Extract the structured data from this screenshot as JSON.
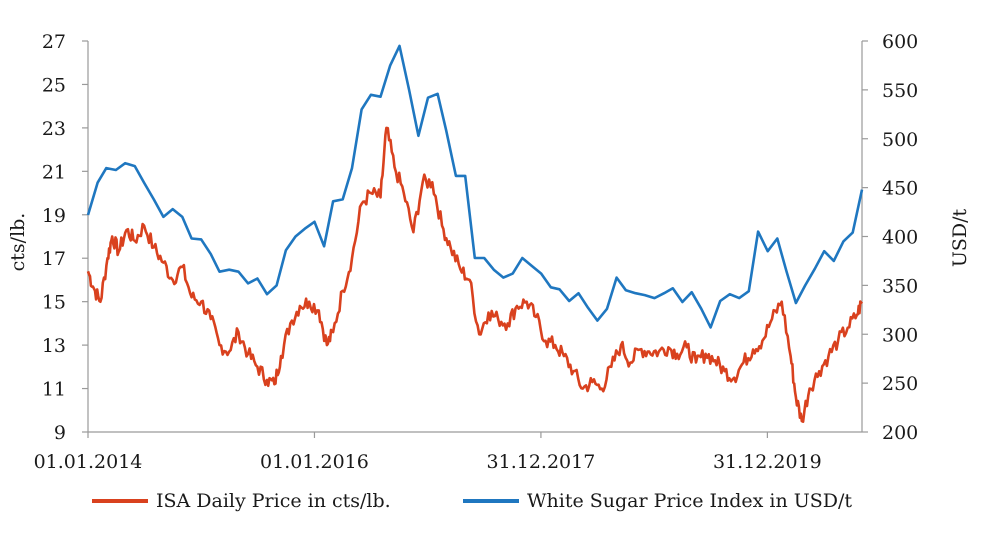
{
  "chart_data": {
    "type": "line",
    "title": "",
    "x_ticks": [
      "01.01.2014",
      "01.01.2016",
      "31.12.2017",
      "31.12.2019"
    ],
    "xlim": [
      "2014-01-01",
      "2020-10-31"
    ],
    "y_left": {
      "label": "cts/lb.",
      "ticks": [
        "27",
        "25",
        "23",
        "21",
        "19",
        "17",
        "15",
        "13",
        "11",
        "9"
      ],
      "ylim": [
        9,
        27
      ]
    },
    "y_right": {
      "label": "USD/t",
      "ticks": [
        "600",
        "550",
        "500",
        "450",
        "400",
        "350",
        "300",
        "250",
        "200"
      ],
      "ylim": [
        200,
        600
      ]
    },
    "series": [
      {
        "name": "ISA Daily Price in cts/lb.",
        "axis": "left",
        "color": "#d9411e",
        "x": [
          "2014-01-01",
          "2014-01-20",
          "2014-02-10",
          "2014-03-05",
          "2014-03-20",
          "2014-04-10",
          "2014-05-05",
          "2014-06-01",
          "2014-07-01",
          "2014-08-01",
          "2014-09-01",
          "2014-10-01",
          "2014-11-01",
          "2014-12-01",
          "2015-01-01",
          "2015-02-01",
          "2015-03-01",
          "2015-04-01",
          "2015-05-01",
          "2015-06-01",
          "2015-07-01",
          "2015-08-01",
          "2015-08-25",
          "2015-09-15",
          "2015-10-15",
          "2015-11-15",
          "2015-12-15",
          "2016-01-15",
          "2016-02-10",
          "2016-03-01",
          "2016-04-01",
          "2016-05-01",
          "2016-06-01",
          "2016-07-01",
          "2016-08-01",
          "2016-08-20",
          "2016-09-15",
          "2016-10-15",
          "2016-11-15",
          "2016-12-15",
          "2017-01-15",
          "2017-02-15",
          "2017-03-15",
          "2017-04-15",
          "2017-05-15",
          "2017-06-15",
          "2017-07-15",
          "2017-08-15",
          "2017-09-15",
          "2017-10-15",
          "2017-11-15",
          "2017-12-15",
          "2018-01-15",
          "2018-02-15",
          "2018-03-15",
          "2018-04-15",
          "2018-05-15",
          "2018-06-15",
          "2018-07-15",
          "2018-08-15",
          "2018-09-15",
          "2018-10-15",
          "2018-11-15",
          "2018-12-15",
          "2019-01-15",
          "2019-02-15",
          "2019-03-15",
          "2019-04-15",
          "2019-05-15",
          "2019-06-15",
          "2019-07-15",
          "2019-08-15",
          "2019-09-15",
          "2019-10-15",
          "2019-11-15",
          "2019-12-15",
          "2020-01-15",
          "2020-02-15",
          "2020-03-15",
          "2020-04-01",
          "2020-04-20",
          "2020-05-15",
          "2020-06-15",
          "2020-07-15",
          "2020-08-15",
          "2020-09-15",
          "2020-10-15",
          "2020-10-31"
        ],
        "values": [
          16.4,
          15.6,
          15.0,
          17.0,
          18.0,
          17.3,
          18.3,
          17.8,
          18.5,
          17.5,
          16.8,
          16.0,
          16.6,
          15.2,
          15.0,
          14.2,
          13.0,
          12.7,
          13.6,
          12.6,
          12.0,
          11.4,
          11.2,
          12.5,
          14.0,
          14.8,
          15.0,
          14.6,
          13.0,
          13.6,
          15.5,
          17.0,
          19.5,
          20.0,
          19.8,
          23.0,
          21.2,
          20.0,
          18.2,
          20.5,
          20.5,
          18.5,
          17.5,
          16.5,
          16.0,
          13.5,
          14.5,
          14.2,
          14.0,
          14.8,
          15.0,
          14.3,
          13.2,
          13.0,
          12.5,
          11.8,
          11.0,
          11.3,
          11.0,
          12.0,
          13.0,
          12.2,
          12.8,
          12.7,
          12.7,
          12.9,
          12.6,
          12.9,
          12.2,
          12.6,
          12.3,
          11.8,
          11.5,
          12.2,
          12.8,
          13.2,
          14.2,
          15.0,
          12.5,
          10.6,
          9.5,
          11.0,
          11.8,
          12.5,
          13.2,
          13.8,
          14.4,
          15.0
        ]
      },
      {
        "name": "White Sugar Price Index in USD/t",
        "axis": "right",
        "color": "#1f77c0",
        "x": [
          "2014-01-01",
          "2014-02-01",
          "2014-03-01",
          "2014-04-01",
          "2014-05-01",
          "2014-06-01",
          "2014-07-01",
          "2014-08-01",
          "2014-09-01",
          "2014-10-01",
          "2014-11-01",
          "2014-12-01",
          "2015-01-01",
          "2015-02-01",
          "2015-03-01",
          "2015-04-01",
          "2015-05-01",
          "2015-06-01",
          "2015-07-01",
          "2015-08-01",
          "2015-09-01",
          "2015-10-01",
          "2015-11-01",
          "2015-12-01",
          "2016-01-01",
          "2016-02-01",
          "2016-03-01",
          "2016-04-01",
          "2016-05-01",
          "2016-06-01",
          "2016-07-01",
          "2016-08-01",
          "2016-09-01",
          "2016-10-01",
          "2016-11-01",
          "2016-12-01",
          "2017-01-01",
          "2017-02-01",
          "2017-03-01",
          "2017-04-01",
          "2017-05-01",
          "2017-06-01",
          "2017-07-01",
          "2017-08-01",
          "2017-09-01",
          "2017-10-01",
          "2017-11-01",
          "2017-12-01",
          "2018-01-01",
          "2018-02-01",
          "2018-03-01",
          "2018-04-01",
          "2018-05-01",
          "2018-06-01",
          "2018-07-01",
          "2018-08-01",
          "2018-09-01",
          "2018-10-01",
          "2018-11-01",
          "2018-12-01",
          "2019-01-01",
          "2019-02-01",
          "2019-03-01",
          "2019-04-01",
          "2019-05-01",
          "2019-06-01",
          "2019-07-01",
          "2019-08-01",
          "2019-09-01",
          "2019-10-01",
          "2019-11-01",
          "2019-12-01",
          "2020-01-01",
          "2020-02-01",
          "2020-03-01",
          "2020-04-01",
          "2020-05-01",
          "2020-06-01",
          "2020-07-01",
          "2020-08-01",
          "2020-09-01",
          "2020-10-01",
          "2020-10-31"
        ],
        "values": [
          422,
          455,
          470,
          468,
          475,
          472,
          455,
          438,
          420,
          428,
          420,
          398,
          397,
          382,
          364,
          366,
          364,
          352,
          357,
          341,
          350,
          386,
          400,
          408,
          415,
          390,
          436,
          438,
          470,
          530,
          545,
          543,
          575,
          595,
          550,
          503,
          542,
          546,
          508,
          462,
          462,
          378,
          378,
          366,
          358,
          362,
          378,
          370,
          362,
          348,
          346,
          334,
          342,
          327,
          314,
          326,
          358,
          345,
          342,
          340,
          337,
          342,
          347,
          333,
          343,
          326,
          307,
          334,
          341,
          337,
          344,
          405,
          385,
          398,
          365,
          332,
          350,
          367,
          385,
          375,
          395,
          404,
          448
        ]
      }
    ],
    "legend": "bottom",
    "grid": false
  }
}
